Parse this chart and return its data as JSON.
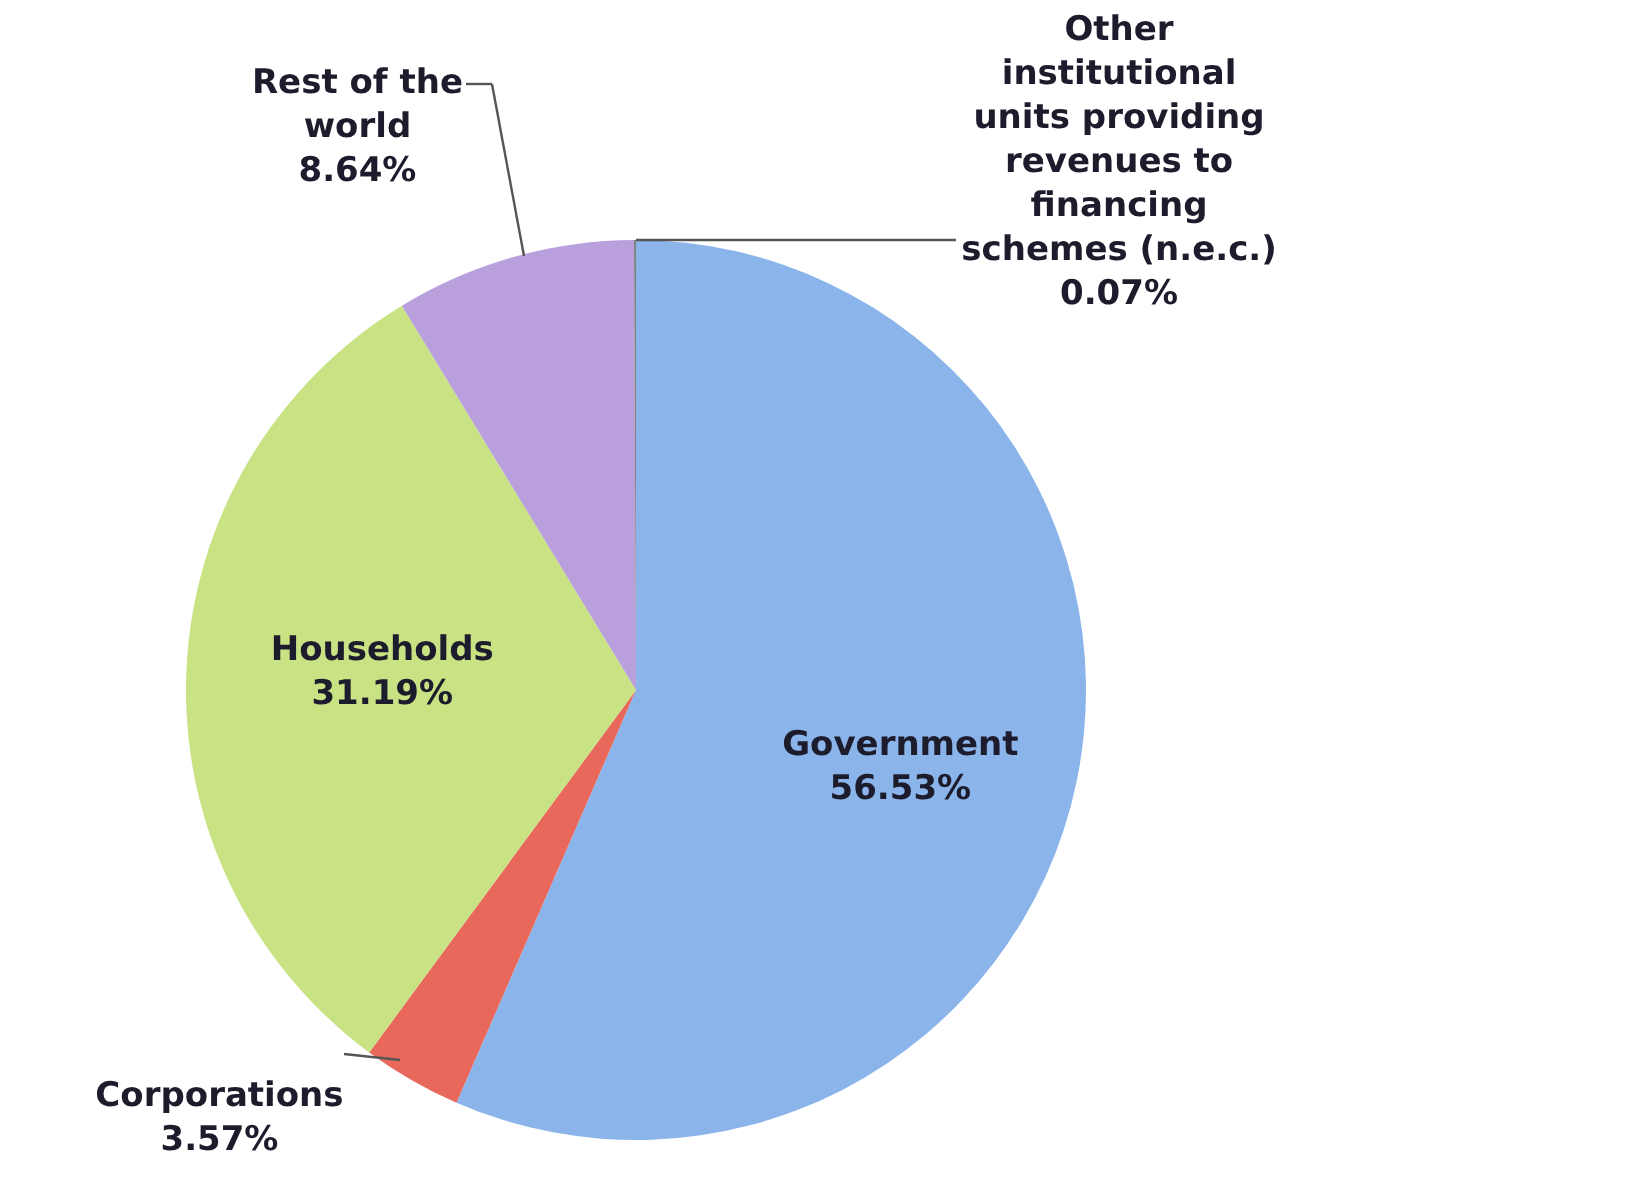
{
  "chart_data": {
    "type": "pie",
    "categories": [
      "Government",
      "Corporations",
      "Households",
      "Rest of the world",
      "Other institutional units providing revenues to financing schemes (n.e.c.)"
    ],
    "values": [
      56.53,
      3.57,
      31.19,
      8.64,
      0.07
    ],
    "value_labels": [
      "56.53%",
      "3.57%",
      "31.19%",
      "8.64%",
      "0.07%"
    ],
    "colors": [
      "#8ab4ea",
      "#e8685c",
      "#c8e284",
      "#b9a0dc",
      "#808080"
    ]
  }
}
